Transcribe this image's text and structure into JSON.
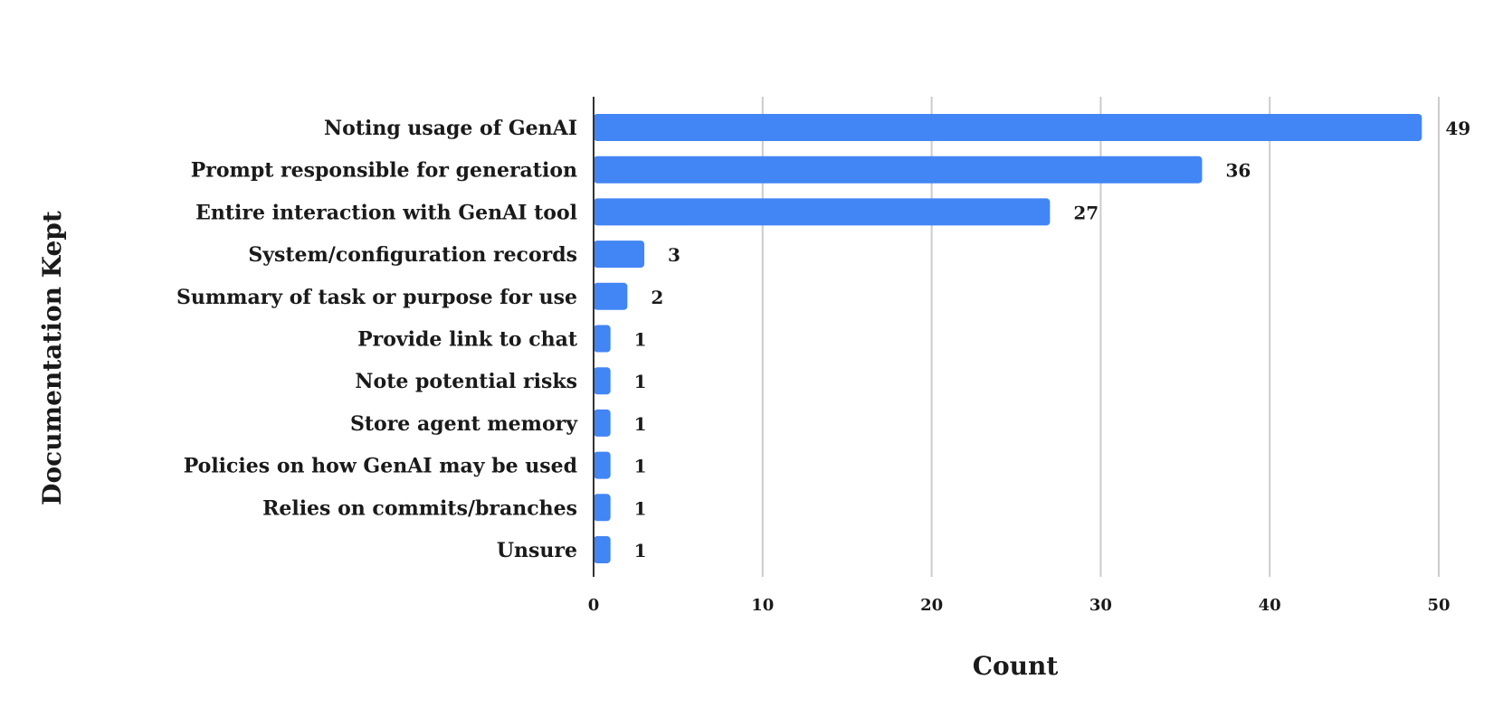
{
  "chart_data": {
    "type": "bar",
    "orientation": "horizontal",
    "title": "",
    "xlabel": "Count",
    "ylabel": "Documentation Kept",
    "categories": [
      "Noting usage of GenAI",
      "Prompt responsible for generation",
      "Entire interaction with GenAI tool",
      "System/configuration records",
      "Summary of task or purpose for use",
      "Provide link to chat",
      "Note potential risks",
      "Store agent memory",
      "Policies on how GenAI may be used",
      "Relies on commits/branches",
      "Unsure"
    ],
    "values": [
      49,
      36,
      27,
      3,
      2,
      1,
      1,
      1,
      1,
      1,
      1
    ],
    "xlim": [
      0,
      50
    ],
    "xticks": [
      0,
      10,
      20,
      30,
      40,
      50
    ],
    "grid": "vertical",
    "data_labels": true,
    "bar_color": "#4285f4",
    "grid_color": "#cccccc",
    "axis_color": "#333333"
  }
}
